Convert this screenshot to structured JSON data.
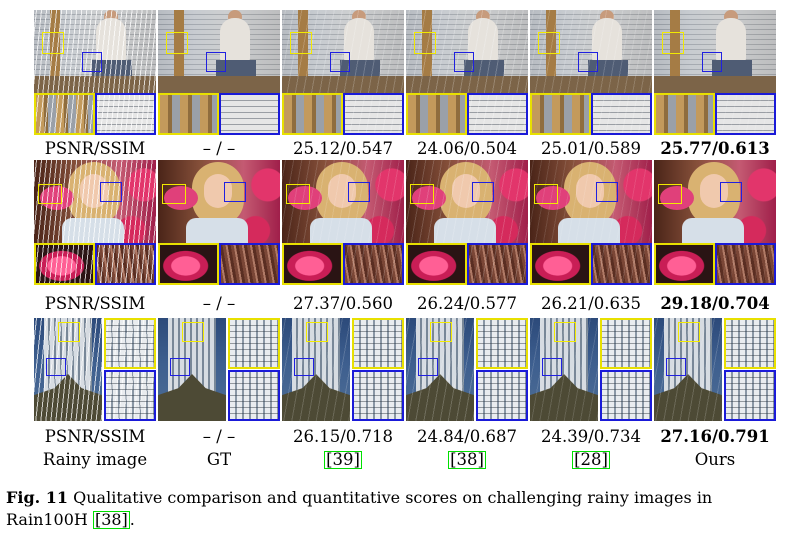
{
  "rows": [
    {
      "metric_label": "PSNR/SSIM",
      "scores": [
        "– / –",
        "25.12/0.547",
        "24.06/0.504",
        "25.01/0.589",
        "25.77/0.613"
      ]
    },
    {
      "metric_label": "PSNR/SSIM",
      "scores": [
        "– / –",
        "27.37/0.560",
        "26.24/0.577",
        "26.21/0.635",
        "29.18/0.704"
      ]
    },
    {
      "metric_label": "PSNR/SSIM",
      "scores": [
        "– / –",
        "26.15/0.718",
        "24.84/0.687",
        "24.39/0.734",
        "27.16/0.791"
      ]
    }
  ],
  "column_labels": [
    "Rainy image",
    "GT",
    "[39]",
    "[38]",
    "[28]",
    "Ours"
  ],
  "caption": {
    "figure_label": "Fig. 11",
    "text_line1": "Qualitative comparison and quantitative scores on challenging rainy images in",
    "text_line2_prefix": "Rain100H ",
    "text_line2_ref": "[38]",
    "text_line2_suffix": "."
  },
  "colors": {
    "zoom_box_yellow": "#e8e000",
    "zoom_box_blue": "#1a1ad8",
    "citation_box_green": "#00e000"
  }
}
